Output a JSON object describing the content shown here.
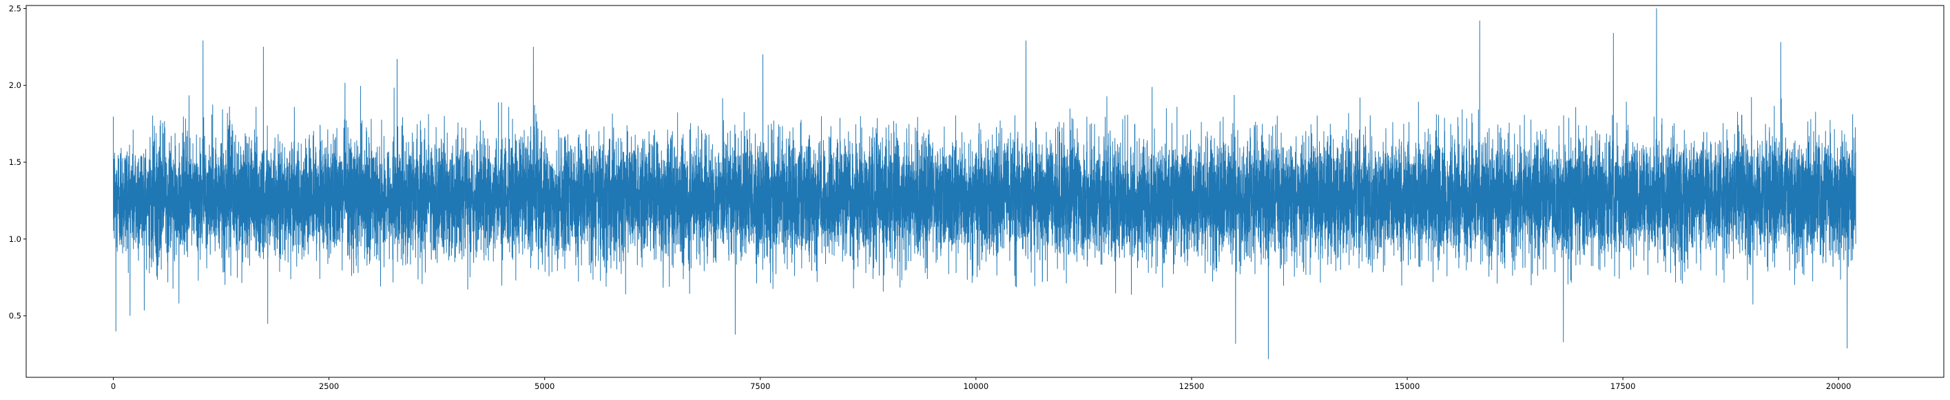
{
  "chart_data": {
    "type": "line",
    "title": "",
    "xlabel": "",
    "ylabel": "",
    "xlim": [
      -1010,
      21220
    ],
    "ylim": [
      0.1,
      2.52
    ],
    "xticks": [
      0,
      2500,
      5000,
      7500,
      10000,
      12500,
      15000,
      17500,
      20000
    ],
    "xtick_labels": [
      "0",
      "2500",
      "5000",
      "7500",
      "10000",
      "12500",
      "15000",
      "17500",
      "20000"
    ],
    "yticks": [
      0.5,
      1.0,
      1.5,
      2.0,
      2.5
    ],
    "ytick_labels": [
      "0.5",
      "1.0",
      "1.5",
      "2.0",
      "2.5"
    ],
    "grid": false,
    "legend": "none",
    "series": [
      {
        "color": "#1f77b4",
        "n_points": 20200,
        "x_range": [
          0,
          20199
        ],
        "center": 1.27,
        "typical_band": [
          0.85,
          1.8
        ],
        "min": 0.22,
        "max": 2.5,
        "peaks": [
          {
            "x": 1040,
            "y": 2.29
          },
          {
            "x": 1740,
            "y": 2.25
          },
          {
            "x": 3290,
            "y": 2.17
          },
          {
            "x": 4870,
            "y": 2.25
          },
          {
            "x": 7530,
            "y": 2.2
          },
          {
            "x": 10580,
            "y": 2.29
          },
          {
            "x": 15840,
            "y": 2.42
          },
          {
            "x": 17390,
            "y": 2.34
          },
          {
            "x": 17890,
            "y": 2.5
          },
          {
            "x": 19330,
            "y": 2.28
          }
        ],
        "troughs": [
          {
            "x": 30,
            "y": 0.4
          },
          {
            "x": 1790,
            "y": 0.45
          },
          {
            "x": 7210,
            "y": 0.38
          },
          {
            "x": 13010,
            "y": 0.32
          },
          {
            "x": 13390,
            "y": 0.22
          },
          {
            "x": 16810,
            "y": 0.33
          },
          {
            "x": 20100,
            "y": 0.29
          }
        ]
      }
    ]
  }
}
